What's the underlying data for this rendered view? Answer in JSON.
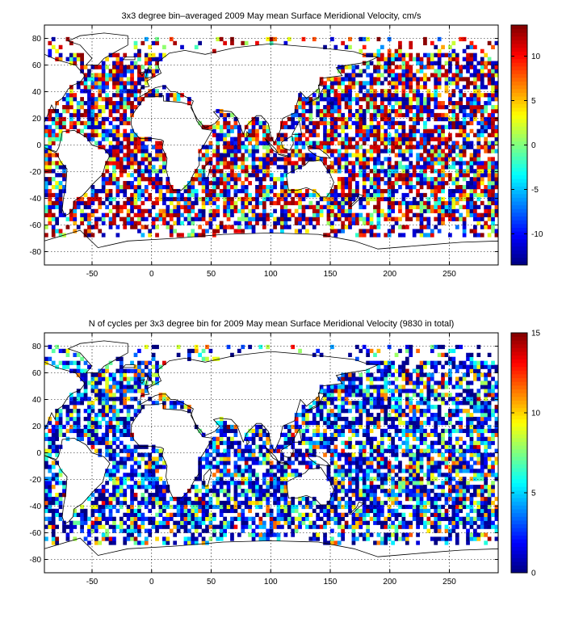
{
  "chart_data": [
    {
      "type": "heatmap",
      "title": "3x3 degree bin–averaged 2009 May mean Surface Meridional Velocity, cm/s",
      "xlabel": "",
      "ylabel": "",
      "xlim": [
        -90,
        291
      ],
      "ylim": [
        -90,
        90
      ],
      "xticks": [
        -50,
        0,
        50,
        100,
        150,
        200,
        250
      ],
      "yticks": [
        -80,
        -60,
        -40,
        -20,
        0,
        20,
        40,
        60,
        80
      ],
      "grid": true,
      "bin_size_deg": 3,
      "colormap": "jet",
      "colorbar": {
        "range": [
          -13.5,
          13.5
        ],
        "ticks": [
          -10,
          -5,
          0,
          5,
          10
        ],
        "placement": "right"
      }
    },
    {
      "type": "heatmap",
      "title": "N of cycles per 3x3 degree bin for 2009 May mean Surface Meridional Velocity (9830 in total)",
      "xlabel": "",
      "ylabel": "",
      "xlim": [
        -90,
        291
      ],
      "ylim": [
        -90,
        90
      ],
      "xticks": [
        -50,
        0,
        50,
        100,
        150,
        200,
        250
      ],
      "yticks": [
        -80,
        -60,
        -40,
        -20,
        0,
        20,
        40,
        60,
        80
      ],
      "grid": true,
      "bin_size_deg": 3,
      "colormap": "jet",
      "colorbar": {
        "range": [
          0,
          15
        ],
        "ticks": [
          0,
          5,
          10,
          15
        ],
        "placement": "right"
      }
    }
  ]
}
